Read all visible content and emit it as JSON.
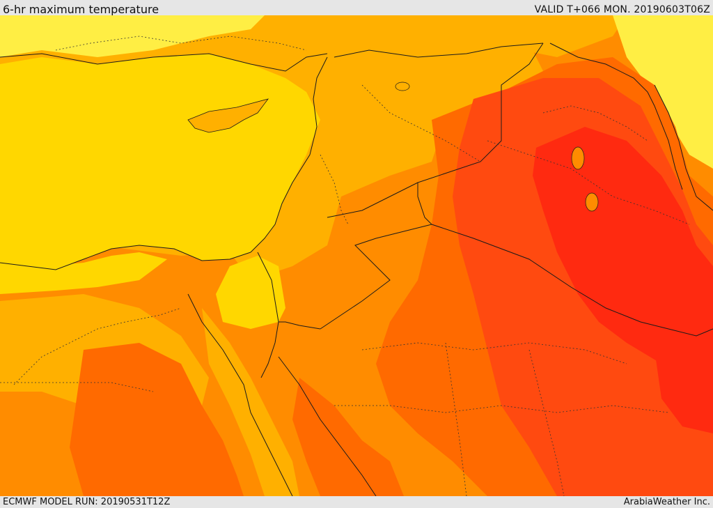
{
  "header": {
    "title": "6-hr maximum temperature",
    "valid": "VALID T+066 MON. 20190603T06Z"
  },
  "footer": {
    "model_run": "ECMWF MODEL RUN: 20190531T12Z",
    "credit": "ArabiaWeather Inc."
  },
  "palette": {
    "pale_yellow": "#ffee44",
    "yellow": "#ffd700",
    "amber": "#ffb000",
    "orange": "#ff8c00",
    "dark_orange": "#ff6a00",
    "red_orange": "#ff4a10",
    "red": "#ff2a10",
    "border": "#1a1a1a"
  }
}
